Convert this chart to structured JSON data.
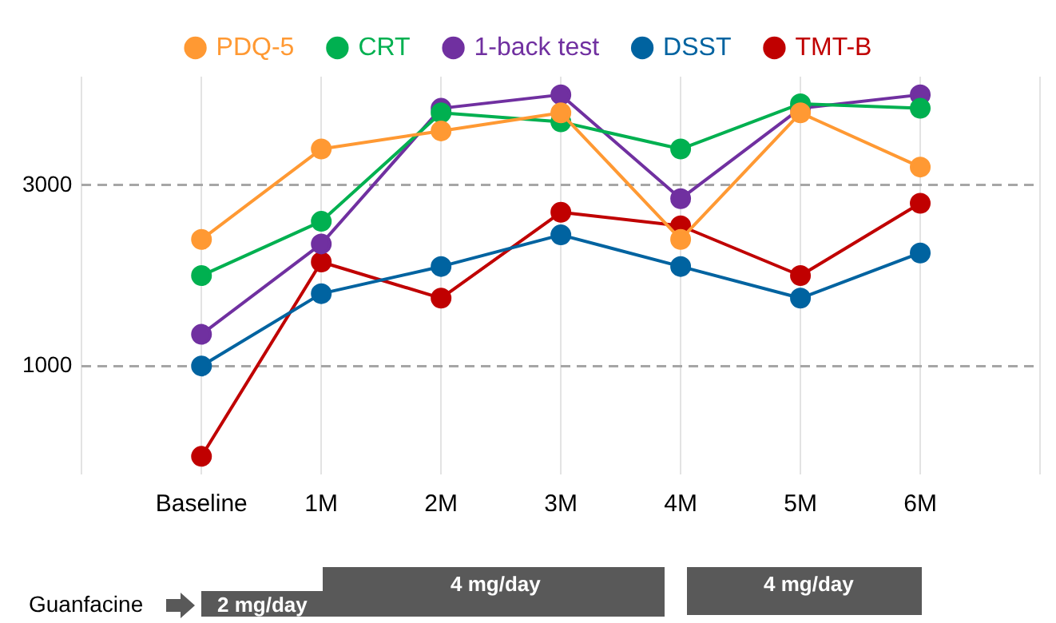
{
  "chart_data": {
    "type": "line",
    "categories": [
      null,
      "Baseline",
      "1M",
      "2M",
      "3M",
      "4M",
      "5M",
      "6M",
      null
    ],
    "series": [
      {
        "name": "PDQ-5",
        "color": "#ff9933",
        "values": [
          null,
          2400,
          3400,
          3600,
          3800,
          2400,
          3800,
          3200,
          null
        ]
      },
      {
        "name": "CRT",
        "color": "#00b050",
        "values": [
          null,
          2000,
          2600,
          3800,
          3700,
          3400,
          3900,
          3850,
          null
        ]
      },
      {
        "name": "1-back test",
        "color": "#7030a0",
        "values": [
          null,
          1350,
          2350,
          3850,
          4000,
          2850,
          3850,
          4000,
          null
        ]
      },
      {
        "name": "DSST",
        "color": "#0063a0",
        "values": [
          null,
          1000,
          1800,
          2100,
          2450,
          2100,
          1750,
          2250,
          null
        ]
      },
      {
        "name": "TMT-B",
        "color": "#c00000",
        "values": [
          null,
          0,
          2150,
          1750,
          2700,
          2550,
          2000,
          2800,
          null
        ]
      }
    ],
    "ylim": [
      -200,
      4200
    ],
    "yticks": [
      1000,
      3000
    ],
    "grid": true,
    "legend": "top",
    "marker": "circle",
    "line_style": "solid",
    "annotations": [
      "Guanfacine",
      "2 mg/day",
      "4 mg/day",
      "4 mg/day"
    ]
  }
}
